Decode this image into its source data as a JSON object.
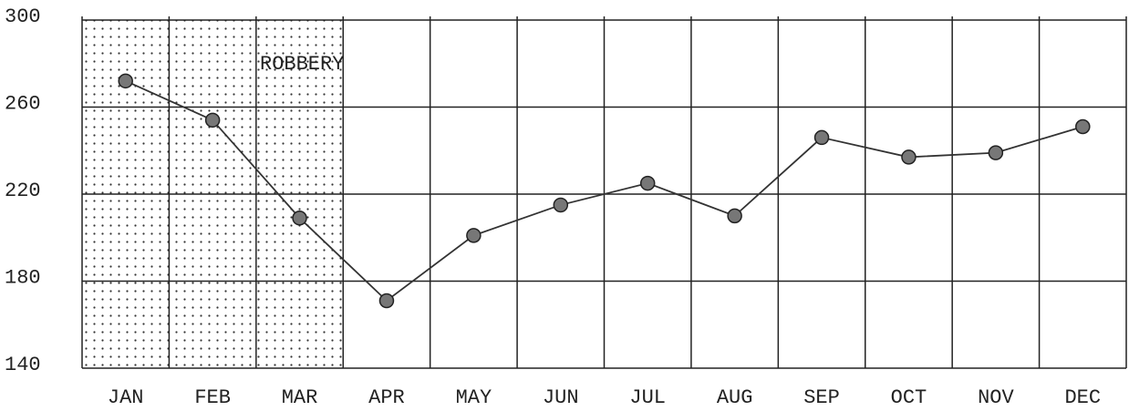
{
  "chart_data": {
    "type": "line",
    "annotation": "ROBBERY",
    "categories": [
      "JAN",
      "FEB",
      "MAR",
      "APR",
      "MAY",
      "JUN",
      "JUL",
      "AUG",
      "SEP",
      "OCT",
      "NOV",
      "DEC"
    ],
    "values": [
      272,
      254,
      209,
      171,
      201,
      215,
      225,
      210,
      246,
      237,
      239,
      251
    ],
    "color": "#333333",
    "ylim": [
      140,
      300
    ],
    "yticks": [
      140,
      180,
      220,
      260,
      300
    ],
    "grid": true
  }
}
